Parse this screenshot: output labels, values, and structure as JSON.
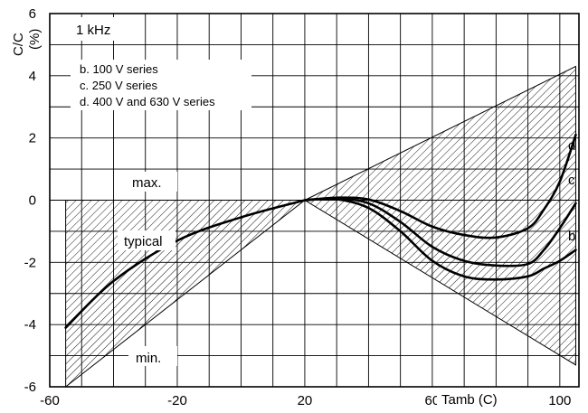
{
  "chart_data": {
    "type": "line",
    "title": "1 kHz",
    "xlabel": "Tamb (C)",
    "ylabel_line1": "C/C",
    "ylabel_line2": "(%)",
    "xlim": [
      -60,
      106
    ],
    "ylim": [
      -6,
      6
    ],
    "x_tick_values": [
      -60,
      -20,
      20,
      60,
      100
    ],
    "x_tick_labels": [
      "-60",
      "-20",
      "20",
      "60",
      "100"
    ],
    "y_tick_values": [
      6,
      4,
      2,
      0,
      -2,
      -4,
      -6
    ],
    "y_tick_labels": [
      "6",
      "4",
      "2",
      "0",
      "-2",
      "-4",
      "-6"
    ],
    "grid": true,
    "legend": [
      "b. 100 V series",
      "c. 250 V series",
      "d. 400 V and 630 V series"
    ],
    "annotations": {
      "max": "max.",
      "typical": "typical",
      "min": "min."
    },
    "tolerance_band": {
      "left_x": -55,
      "left_max": 0,
      "left_min": -6,
      "pivot_x": 20,
      "pivot_y": 0,
      "right_x": 105,
      "right_max": 4.3,
      "right_min": -5.3
    },
    "series": [
      {
        "name": "typical",
        "x": [
          -55,
          -40,
          -20,
          0,
          20
        ],
        "y": [
          -4.1,
          -2.6,
          -1.3,
          -0.55,
          0
        ]
      },
      {
        "name": "d",
        "x": [
          20,
          30,
          40,
          50,
          60,
          70,
          80,
          90,
          95,
          100,
          105
        ],
        "y": [
          0,
          0.08,
          0.02,
          -0.35,
          -0.85,
          -1.12,
          -1.2,
          -0.9,
          -0.3,
          0.6,
          2.1
        ]
      },
      {
        "name": "c",
        "x": [
          20,
          30,
          40,
          50,
          60,
          70,
          80,
          90,
          95,
          100,
          105
        ],
        "y": [
          0,
          0.05,
          -0.1,
          -0.7,
          -1.5,
          -1.95,
          -2.1,
          -2.05,
          -1.6,
          -0.9,
          -0.1
        ]
      },
      {
        "name": "b",
        "x": [
          20,
          30,
          40,
          50,
          60,
          70,
          80,
          90,
          95,
          100,
          105
        ],
        "y": [
          0,
          0.03,
          -0.25,
          -1.0,
          -1.95,
          -2.45,
          -2.55,
          -2.45,
          -2.2,
          -1.95,
          -1.6
        ]
      }
    ]
  }
}
